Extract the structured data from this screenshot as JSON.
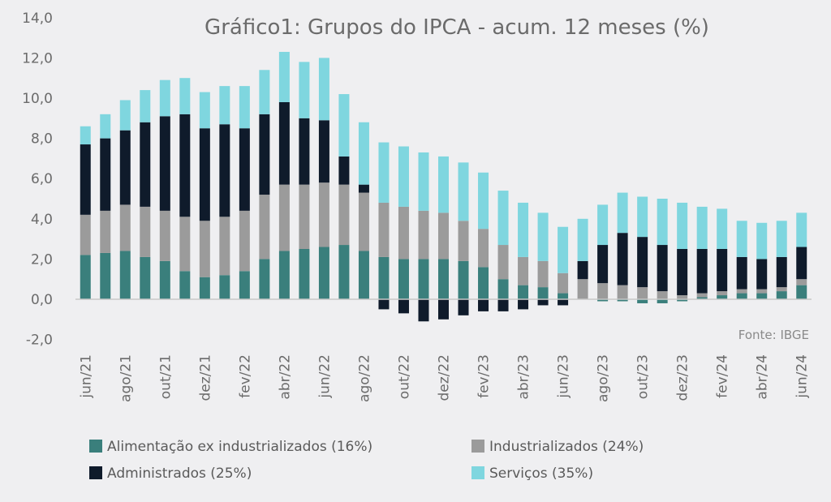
{
  "chart_data": {
    "type": "bar",
    "stacked": true,
    "title": "Gráfico1: Grupos do IPCA - acum. 12 meses (%)",
    "source": "Fonte: IBGE",
    "ylim": [
      -2.0,
      14.0
    ],
    "yticks": [
      "14,0",
      "12,0",
      "10,0",
      "8,0",
      "6,0",
      "4,0",
      "2,0",
      "0,0",
      "-2,0"
    ],
    "ytick_values": [
      14,
      12,
      10,
      8,
      6,
      4,
      2,
      0,
      -2
    ],
    "categories": [
      "jun/21",
      "jul/21",
      "ago/21",
      "set/21",
      "out/21",
      "nov/21",
      "dez/21",
      "jan/22",
      "fev/22",
      "mar/22",
      "abr/22",
      "mai/22",
      "jun/22",
      "jul/22",
      "ago/22",
      "set/22",
      "out/22",
      "nov/22",
      "dez/22",
      "jan/23",
      "fev/23",
      "mar/23",
      "abr/23",
      "mai/23",
      "jun/23",
      "jul/23",
      "ago/23",
      "set/23",
      "out/23",
      "nov/23",
      "dez/23",
      "jan/24",
      "fev/24",
      "mar/24",
      "abr/24",
      "mai/24",
      "jun/24"
    ],
    "xtick_labels": [
      "jun/21",
      "ago/21",
      "out/21",
      "dez/21",
      "fev/22",
      "abr/22",
      "jun/22",
      "ago/22",
      "out/22",
      "dez/22",
      "fev/23",
      "abr/23",
      "jun/23",
      "ago/23",
      "out/23",
      "dez/23",
      "fev/24",
      "abr/24",
      "jun/24"
    ],
    "series": [
      {
        "name": "Alimentação ex industrializados (16%)",
        "color": "#3a7f7c",
        "values": [
          2.2,
          2.3,
          2.4,
          2.1,
          1.9,
          1.4,
          1.1,
          1.2,
          1.4,
          2.0,
          2.4,
          2.5,
          2.6,
          2.7,
          2.4,
          2.1,
          2.0,
          2.0,
          2.0,
          1.9,
          1.6,
          1.0,
          0.7,
          0.6,
          0.3,
          0.0,
          -0.1,
          -0.1,
          -0.2,
          -0.2,
          -0.1,
          0.1,
          0.2,
          0.3,
          0.3,
          0.4,
          0.7
        ]
      },
      {
        "name": "Industrializados (24%)",
        "color": "#9b9b9b",
        "values": [
          2.0,
          2.1,
          2.3,
          2.5,
          2.5,
          2.7,
          2.8,
          2.9,
          3.0,
          3.2,
          3.3,
          3.2,
          3.2,
          3.0,
          2.9,
          2.7,
          2.6,
          2.4,
          2.3,
          2.0,
          1.9,
          1.7,
          1.4,
          1.3,
          1.0,
          1.0,
          0.8,
          0.7,
          0.6,
          0.4,
          0.2,
          0.2,
          0.2,
          0.2,
          0.2,
          0.2,
          0.3
        ]
      },
      {
        "name": "Administrados (25%)",
        "color": "#0f1b2b",
        "values": [
          3.5,
          3.6,
          3.7,
          4.2,
          4.7,
          5.1,
          4.6,
          4.6,
          4.1,
          4.0,
          4.1,
          3.3,
          3.1,
          1.4,
          0.4,
          -0.5,
          -0.7,
          -1.1,
          -1.0,
          -0.8,
          -0.6,
          -0.6,
          -0.5,
          -0.3,
          -0.3,
          0.9,
          1.9,
          2.6,
          2.5,
          2.3,
          2.3,
          2.2,
          2.1,
          1.6,
          1.5,
          1.5,
          1.6
        ]
      },
      {
        "name": "Serviços (35%)",
        "color": "#7fd6df",
        "values": [
          0.9,
          1.2,
          1.5,
          1.6,
          1.8,
          1.8,
          1.8,
          1.9,
          2.1,
          2.2,
          2.5,
          2.8,
          3.1,
          3.1,
          3.1,
          3.0,
          3.0,
          2.9,
          2.8,
          2.9,
          2.8,
          2.7,
          2.7,
          2.4,
          2.3,
          2.1,
          2.0,
          2.0,
          2.0,
          2.3,
          2.3,
          2.1,
          2.0,
          1.8,
          1.8,
          1.8,
          1.7
        ]
      }
    ]
  }
}
